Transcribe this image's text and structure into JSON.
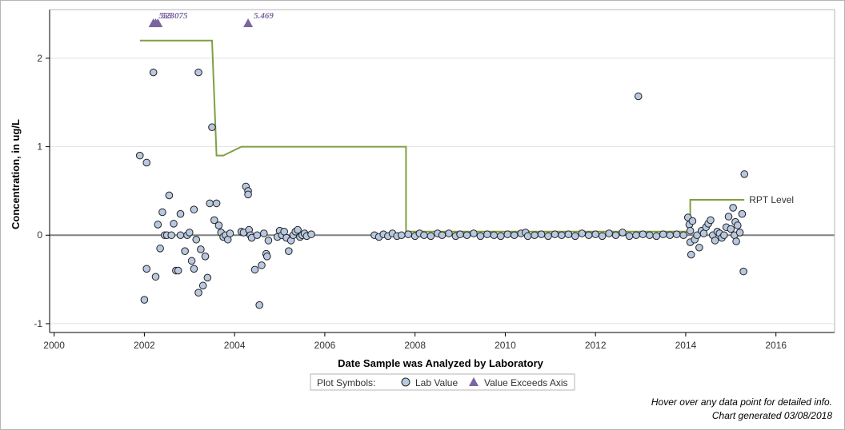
{
  "chart_data": {
    "type": "scatter",
    "xlabel": "Date Sample was Analyzed by Laboratory",
    "ylabel": "Concentration, in ug/L",
    "xlim": [
      1999.9,
      2017.3
    ],
    "ylim": [
      -1.1,
      2.55
    ],
    "x_ticks": [
      2000,
      2002,
      2004,
      2006,
      2008,
      2010,
      2012,
      2014,
      2016
    ],
    "y_ticks": [
      -1,
      0,
      1,
      2
    ],
    "zero_line": 0,
    "grid": "horizontal",
    "colors": {
      "point_fill": "#b8c8e0",
      "point_stroke": "#222222",
      "rpt_line": "#7fa040",
      "exceed_marker": "#7b64a0",
      "zero_line": "#808080",
      "grid": "#e2e2e2"
    },
    "rpt_level": {
      "name": "RPT Level",
      "points": [
        [
          2001.9,
          2.2
        ],
        [
          2003.5,
          2.2
        ],
        [
          2003.6,
          0.9
        ],
        [
          2003.75,
          0.9
        ],
        [
          2004.15,
          1.0
        ],
        [
          2007.8,
          1.0
        ],
        [
          2007.8,
          0.04
        ],
        [
          2014.0,
          0.04
        ],
        [
          2014.1,
          0.04
        ],
        [
          2014.1,
          0.4
        ],
        [
          2015.3,
          0.4
        ]
      ]
    },
    "exceeds_axis": [
      {
        "x": 2002.2,
        "value": 5.2,
        "label": "5.2"
      },
      {
        "x": 2002.25,
        "value": 5.3,
        "label": "5.3"
      },
      {
        "x": 2002.3,
        "value": 5.3075,
        "label": "5.3075"
      },
      {
        "x": 2004.3,
        "value": 5.469,
        "label": "5.469"
      }
    ],
    "lab_values": [
      [
        2001.9,
        0.9
      ],
      [
        2002.0,
        -0.73
      ],
      [
        2002.05,
        0.82
      ],
      [
        2002.05,
        -0.38
      ],
      [
        2002.2,
        1.84
      ],
      [
        2002.25,
        -0.47
      ],
      [
        2002.3,
        0.12
      ],
      [
        2002.35,
        -0.15
      ],
      [
        2002.4,
        0.26
      ],
      [
        2002.45,
        0.0
      ],
      [
        2002.5,
        0.0
      ],
      [
        2002.55,
        0.45
      ],
      [
        2002.6,
        0.0
      ],
      [
        2002.65,
        0.13
      ],
      [
        2002.7,
        -0.4
      ],
      [
        2002.75,
        -0.4
      ],
      [
        2002.8,
        0.0
      ],
      [
        2002.8,
        0.24
      ],
      [
        2002.9,
        -0.18
      ],
      [
        2002.95,
        0.0
      ],
      [
        2003.0,
        0.03
      ],
      [
        2003.05,
        -0.29
      ],
      [
        2003.1,
        0.29
      ],
      [
        2003.1,
        -0.38
      ],
      [
        2003.15,
        -0.05
      ],
      [
        2003.2,
        1.84
      ],
      [
        2003.2,
        -0.65
      ],
      [
        2003.25,
        -0.16
      ],
      [
        2003.3,
        -0.57
      ],
      [
        2003.35,
        -0.24
      ],
      [
        2003.4,
        -0.48
      ],
      [
        2003.45,
        0.36
      ],
      [
        2003.5,
        1.22
      ],
      [
        2003.55,
        0.17
      ],
      [
        2003.6,
        0.36
      ],
      [
        2003.65,
        0.11
      ],
      [
        2003.7,
        0.03
      ],
      [
        2003.75,
        -0.02
      ],
      [
        2003.8,
        0.0
      ],
      [
        2003.85,
        -0.05
      ],
      [
        2003.9,
        0.02
      ],
      [
        2004.15,
        0.04
      ],
      [
        2004.2,
        0.03
      ],
      [
        2004.25,
        0.55
      ],
      [
        2004.3,
        0.5
      ],
      [
        2004.3,
        0.46
      ],
      [
        2004.32,
        0.06
      ],
      [
        2004.35,
        0.0
      ],
      [
        2004.38,
        -0.03
      ],
      [
        2004.45,
        -0.39
      ],
      [
        2004.5,
        0.0
      ],
      [
        2004.55,
        -0.79
      ],
      [
        2004.6,
        -0.34
      ],
      [
        2004.65,
        0.02
      ],
      [
        2004.7,
        -0.21
      ],
      [
        2004.72,
        -0.24
      ],
      [
        2004.75,
        -0.06
      ],
      [
        2004.95,
        -0.02
      ],
      [
        2005.0,
        0.05
      ],
      [
        2005.05,
        0.0
      ],
      [
        2005.1,
        0.04
      ],
      [
        2005.15,
        -0.03
      ],
      [
        2005.2,
        -0.18
      ],
      [
        2005.25,
        -0.06
      ],
      [
        2005.3,
        0.0
      ],
      [
        2005.35,
        0.04
      ],
      [
        2005.4,
        0.06
      ],
      [
        2005.45,
        -0.02
      ],
      [
        2005.5,
        0.0
      ],
      [
        2005.55,
        0.02
      ],
      [
        2005.6,
        -0.01
      ],
      [
        2005.7,
        0.01
      ],
      [
        2007.1,
        0.0
      ],
      [
        2007.2,
        -0.02
      ],
      [
        2007.3,
        0.01
      ],
      [
        2007.4,
        -0.01
      ],
      [
        2007.5,
        0.02
      ],
      [
        2007.6,
        -0.01
      ],
      [
        2007.7,
        0.0
      ],
      [
        2007.85,
        0.01
      ],
      [
        2008.0,
        -0.01
      ],
      [
        2008.1,
        0.02
      ],
      [
        2008.2,
        0.0
      ],
      [
        2008.35,
        -0.01
      ],
      [
        2008.5,
        0.02
      ],
      [
        2008.6,
        0.0
      ],
      [
        2008.75,
        0.02
      ],
      [
        2008.9,
        -0.01
      ],
      [
        2009.0,
        0.01
      ],
      [
        2009.15,
        0.0
      ],
      [
        2009.3,
        0.02
      ],
      [
        2009.45,
        -0.01
      ],
      [
        2009.6,
        0.01
      ],
      [
        2009.75,
        0.0
      ],
      [
        2009.9,
        -0.01
      ],
      [
        2010.05,
        0.01
      ],
      [
        2010.2,
        0.0
      ],
      [
        2010.35,
        0.02
      ],
      [
        2010.45,
        0.03
      ],
      [
        2010.5,
        -0.01
      ],
      [
        2010.65,
        0.0
      ],
      [
        2010.8,
        0.01
      ],
      [
        2010.95,
        -0.01
      ],
      [
        2011.1,
        0.01
      ],
      [
        2011.25,
        0.0
      ],
      [
        2011.4,
        0.01
      ],
      [
        2011.55,
        -0.01
      ],
      [
        2011.7,
        0.02
      ],
      [
        2011.85,
        0.0
      ],
      [
        2012.0,
        0.01
      ],
      [
        2012.15,
        -0.01
      ],
      [
        2012.3,
        0.02
      ],
      [
        2012.45,
        0.0
      ],
      [
        2012.6,
        0.03
      ],
      [
        2012.75,
        -0.01
      ],
      [
        2012.9,
        0.0
      ],
      [
        2012.95,
        1.57
      ],
      [
        2013.05,
        0.01
      ],
      [
        2013.2,
        0.0
      ],
      [
        2013.35,
        -0.01
      ],
      [
        2013.5,
        0.01
      ],
      [
        2013.65,
        0.0
      ],
      [
        2013.8,
        0.01
      ],
      [
        2013.95,
        0.0
      ],
      [
        2014.05,
        0.2
      ],
      [
        2014.08,
        0.12
      ],
      [
        2014.1,
        0.05
      ],
      [
        2014.1,
        -0.08
      ],
      [
        2014.12,
        -0.22
      ],
      [
        2014.15,
        0.16
      ],
      [
        2014.2,
        -0.05
      ],
      [
        2014.25,
        0.0
      ],
      [
        2014.3,
        -0.14
      ],
      [
        2014.35,
        0.05
      ],
      [
        2014.4,
        0.02
      ],
      [
        2014.45,
        0.09
      ],
      [
        2014.5,
        0.13
      ],
      [
        2014.55,
        0.17
      ],
      [
        2014.6,
        0.0
      ],
      [
        2014.65,
        -0.06
      ],
      [
        2014.7,
        0.04
      ],
      [
        2014.75,
        0.02
      ],
      [
        2014.8,
        -0.03
      ],
      [
        2014.85,
        0.0
      ],
      [
        2014.9,
        0.09
      ],
      [
        2014.95,
        0.21
      ],
      [
        2015.0,
        0.07
      ],
      [
        2015.05,
        0.31
      ],
      [
        2015.08,
        0.0
      ],
      [
        2015.1,
        0.15
      ],
      [
        2015.12,
        -0.07
      ],
      [
        2015.15,
        0.11
      ],
      [
        2015.2,
        0.03
      ],
      [
        2015.25,
        0.24
      ],
      [
        2015.28,
        -0.41
      ],
      [
        2015.3,
        0.69
      ]
    ],
    "legend": {
      "title": "Plot Symbols:",
      "items": [
        {
          "label": "Lab Value",
          "marker": "circle"
        },
        {
          "label": "Value Exceeds Axis",
          "marker": "triangle"
        }
      ],
      "placement": "bottom-center"
    },
    "footnote": [
      "Hover over any data point for detailed info.",
      "Chart generated 03/08/2018"
    ]
  }
}
